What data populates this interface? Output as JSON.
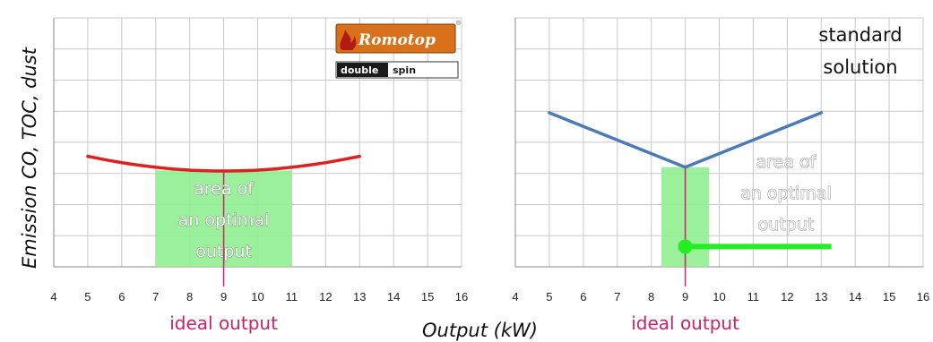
{
  "y_axis_label": "Emission CO, TOC, dust",
  "x_axis_label": "Output  (kW)",
  "brand": {
    "name": "Romotop",
    "registered_mark": "®",
    "sub_brand_left": "double",
    "sub_brand_right": "spin"
  },
  "colors": {
    "grid": "#c8c8c8",
    "romotop_curve": "#e02020",
    "standard_curve": "#4a7ab8",
    "optimal_area": "#90ee90",
    "ideal_marker": "#cc2266",
    "standard_optimal_line": "#22ee22",
    "logo_bg": "#d9711a",
    "logo_dark": "#1a1a1a"
  },
  "chart_data": [
    {
      "type": "line",
      "panel": "left",
      "x_ticks": [
        4,
        5,
        6,
        7,
        8,
        9,
        10,
        11,
        12,
        13,
        14,
        15,
        16
      ],
      "xlim": [
        4,
        16
      ],
      "ylim": [
        0,
        8
      ],
      "grid": true,
      "series": [
        {
          "x": [
            5,
            6,
            7,
            8,
            9,
            10,
            11,
            12,
            13
          ],
          "y": [
            3.55,
            3.34,
            3.19,
            3.1,
            3.07,
            3.1,
            3.19,
            3.34,
            3.55
          ]
        }
      ],
      "optimal_area": {
        "x_range": [
          7,
          11
        ],
        "y_range": [
          0,
          3.1
        ]
      },
      "optimal_area_label": [
        "area of",
        "an optimal",
        "output"
      ],
      "ideal_output": {
        "x": 9,
        "label": "ideal output"
      }
    },
    {
      "type": "line",
      "panel": "right",
      "x_ticks": [
        4,
        5,
        6,
        7,
        8,
        9,
        10,
        11,
        12,
        13,
        14,
        15,
        16
      ],
      "xlim": [
        4,
        16
      ],
      "ylim": [
        0,
        8
      ],
      "grid": true,
      "series": [
        {
          "x": [
            5,
            9,
            13
          ],
          "y": [
            4.95,
            3.2,
            4.95
          ]
        }
      ],
      "optimal_area": {
        "x_range": [
          8.3,
          9.7
        ],
        "y_range": [
          0,
          3.2
        ]
      },
      "optimal_area_label": [
        "area of",
        "an optimal",
        "output"
      ],
      "optimal_range_line": {
        "x": [
          9,
          13.3
        ],
        "y": 0.65
      },
      "ideal_output": {
        "x": 9,
        "label": "ideal output"
      },
      "annotation": [
        "standard",
        "solution"
      ]
    }
  ]
}
